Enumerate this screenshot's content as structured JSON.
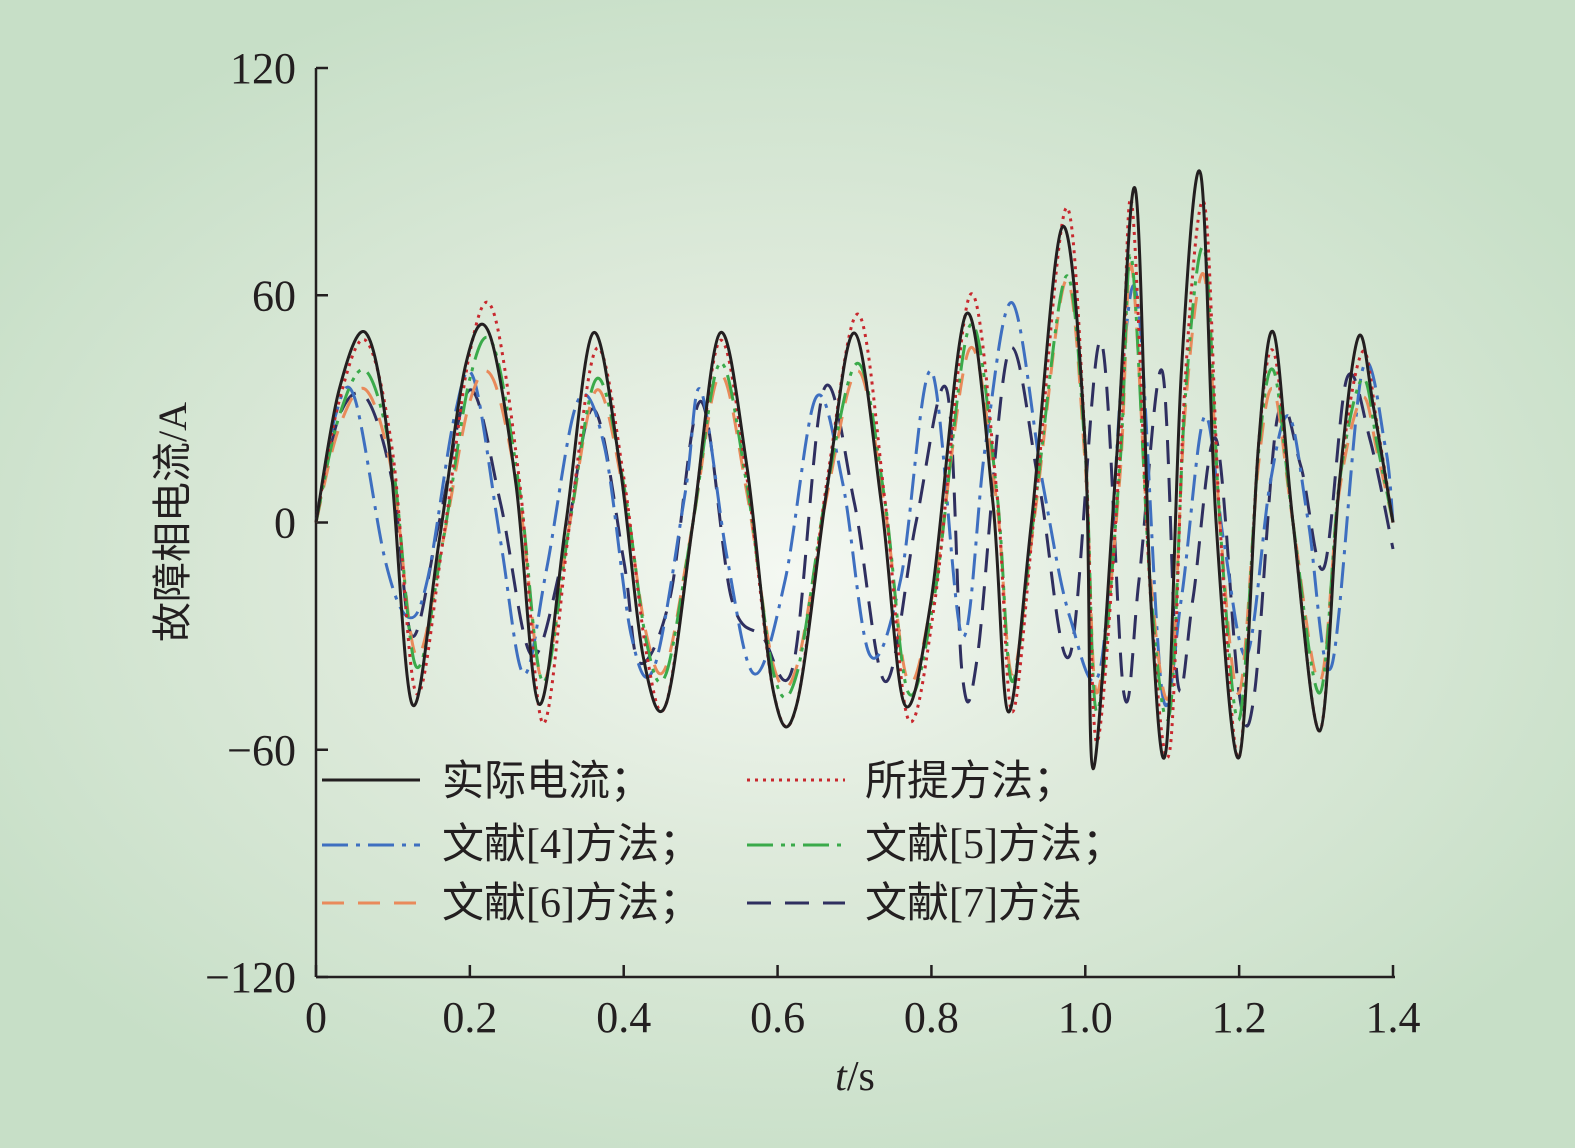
{
  "chart_data": {
    "type": "line",
    "xlabel_italic": "t",
    "xlabel_rest": "/s",
    "ylabel": "故障相电流/A",
    "xlim": [
      0,
      1.4
    ],
    "ylim": [
      -120,
      120
    ],
    "xticks": [
      "0",
      "0.2",
      "0.4",
      "0.6",
      "0.8",
      "1.0",
      "1.2",
      "1.4"
    ],
    "yticks": [
      "120",
      "60",
      "0",
      "−60",
      "−120"
    ],
    "grid": false,
    "legend_position": "lower-left",
    "legend": {
      "actual": "实际电流；",
      "proposed": "所提方法；",
      "ref4": "文献[4]方法；",
      "ref5": "文献[5]方法；",
      "ref6": "文献[6]方法；",
      "ref7": "文献[7]方法"
    },
    "series": [
      {
        "key": "actual",
        "name": "实际电流",
        "color": "#231f20",
        "dash": "none",
        "width": 3,
        "x": [
          0,
          0.03,
          0.065,
          0.095,
          0.125,
          0.16,
          0.195,
          0.225,
          0.26,
          0.29,
          0.325,
          0.36,
          0.395,
          0.425,
          0.455,
          0.49,
          0.525,
          0.56,
          0.595,
          0.625,
          0.665,
          0.7,
          0.735,
          0.765,
          0.8,
          0.845,
          0.88,
          0.9,
          0.93,
          0.97,
          1.0,
          1.01,
          1.04,
          1.065,
          1.085,
          1.105,
          1.125,
          1.15,
          1.17,
          1.2,
          1.225,
          1.245,
          1.27,
          1.305,
          1.33,
          1.355,
          1.375,
          1.4
        ],
        "y": [
          0,
          35,
          50,
          20,
          -48,
          -5,
          42,
          50,
          10,
          -48,
          0,
          50,
          15,
          -35,
          -48,
          0,
          50,
          15,
          -45,
          -48,
          10,
          50,
          5,
          -48,
          -20,
          55,
          5,
          -50,
          0,
          78,
          20,
          -65,
          15,
          88,
          -20,
          -60,
          40,
          92,
          0,
          -62,
          20,
          50,
          0,
          -55,
          10,
          49,
          30,
          0
        ]
      },
      {
        "key": "proposed",
        "name": "所提方法",
        "color": "#c8282e",
        "dash": "3 5",
        "width": 3,
        "x": [
          0,
          0.03,
          0.065,
          0.1,
          0.13,
          0.165,
          0.2,
          0.23,
          0.265,
          0.295,
          0.33,
          0.365,
          0.4,
          0.43,
          0.455,
          0.49,
          0.525,
          0.56,
          0.595,
          0.625,
          0.665,
          0.705,
          0.74,
          0.77,
          0.805,
          0.85,
          0.885,
          0.905,
          0.935,
          0.975,
          1.0,
          1.015,
          1.045,
          1.06,
          1.085,
          1.11,
          1.13,
          1.155,
          1.175,
          1.2,
          1.225,
          1.245,
          1.27,
          1.305,
          1.33,
          1.36,
          1.38,
          1.4
        ],
        "y": [
          0,
          32,
          48,
          18,
          -45,
          -5,
          45,
          56,
          10,
          -53,
          0,
          46,
          12,
          -35,
          -48,
          0,
          48,
          12,
          -45,
          -48,
          12,
          55,
          5,
          -52,
          -20,
          60,
          8,
          -50,
          5,
          83,
          20,
          -58,
          18,
          85,
          -20,
          -60,
          38,
          84,
          0,
          -62,
          20,
          45,
          0,
          -55,
          10,
          45,
          25,
          0
        ]
      },
      {
        "key": "ref4",
        "name": "文献[4]方法",
        "color": "#3e6fc0",
        "dash": "26 8 4 8",
        "width": 3,
        "x": [
          0,
          0.025,
          0.05,
          0.09,
          0.12,
          0.145,
          0.18,
          0.205,
          0.24,
          0.27,
          0.3,
          0.34,
          0.375,
          0.41,
          0.44,
          0.48,
          0.5,
          0.535,
          0.57,
          0.61,
          0.65,
          0.685,
          0.72,
          0.76,
          0.8,
          0.84,
          0.87,
          0.905,
          0.945,
          0.98,
          1.02,
          1.05,
          1.07,
          1.1,
          1.125,
          1.155,
          1.18,
          1.21,
          1.24,
          1.265,
          1.29,
          1.32,
          1.36,
          1.39,
          1.4
        ],
        "y": [
          0,
          28,
          33,
          -10,
          -25,
          -15,
          28,
          38,
          -5,
          -40,
          -12,
          32,
          20,
          -30,
          -38,
          8,
          35,
          -10,
          -40,
          -15,
          33,
          10,
          -35,
          -15,
          40,
          -30,
          20,
          58,
          10,
          -25,
          -38,
          45,
          55,
          -45,
          -20,
          28,
          -5,
          -35,
          10,
          28,
          0,
          -38,
          40,
          20,
          0
        ]
      },
      {
        "key": "ref5",
        "name": "文献[5]方法",
        "color": "#3aaa4a",
        "dash": "26 8 4 6 4 8",
        "width": 3,
        "x": [
          0,
          0.03,
          0.065,
          0.1,
          0.13,
          0.165,
          0.2,
          0.23,
          0.265,
          0.295,
          0.33,
          0.365,
          0.4,
          0.43,
          0.455,
          0.49,
          0.525,
          0.56,
          0.595,
          0.625,
          0.665,
          0.705,
          0.74,
          0.77,
          0.805,
          0.85,
          0.885,
          0.905,
          0.935,
          0.975,
          1.0,
          1.015,
          1.045,
          1.06,
          1.085,
          1.11,
          1.13,
          1.155,
          1.175,
          1.2,
          1.225,
          1.245,
          1.27,
          1.305,
          1.33,
          1.36,
          1.38,
          1.4
        ],
        "y": [
          0,
          28,
          40,
          15,
          -38,
          -5,
          38,
          47,
          8,
          -42,
          0,
          38,
          10,
          -32,
          -40,
          0,
          42,
          10,
          -40,
          -40,
          10,
          42,
          5,
          -45,
          -18,
          52,
          8,
          -42,
          5,
          65,
          18,
          -50,
          15,
          70,
          -18,
          -50,
          33,
          72,
          0,
          -52,
          18,
          40,
          0,
          -45,
          10,
          38,
          20,
          0
        ]
      },
      {
        "key": "ref6",
        "name": "文献[6]方法",
        "color": "#e98a5b",
        "dash": "22 14",
        "width": 3,
        "x": [
          0,
          0.03,
          0.065,
          0.1,
          0.13,
          0.165,
          0.2,
          0.23,
          0.265,
          0.295,
          0.33,
          0.365,
          0.4,
          0.43,
          0.455,
          0.49,
          0.525,
          0.56,
          0.595,
          0.625,
          0.665,
          0.705,
          0.74,
          0.77,
          0.805,
          0.85,
          0.885,
          0.905,
          0.935,
          0.975,
          1.0,
          1.015,
          1.045,
          1.06,
          1.085,
          1.11,
          1.13,
          1.155,
          1.175,
          1.2,
          1.225,
          1.245,
          1.27,
          1.305,
          1.33,
          1.36,
          1.38,
          1.4
        ],
        "y": [
          0,
          25,
          35,
          12,
          -35,
          -5,
          32,
          38,
          5,
          -42,
          0,
          35,
          8,
          -30,
          -38,
          0,
          39,
          8,
          -38,
          -38,
          8,
          40,
          3,
          -42,
          -15,
          46,
          5,
          -40,
          3,
          64,
          15,
          -45,
          12,
          68,
          -15,
          -45,
          30,
          65,
          0,
          -45,
          15,
          35,
          0,
          -42,
          8,
          33,
          18,
          0
        ]
      },
      {
        "key": "ref7",
        "name": "文献[7]方法",
        "color": "#2f2f5f",
        "dash": "24 14",
        "width": 3,
        "x": [
          0,
          0.03,
          0.065,
          0.1,
          0.125,
          0.16,
          0.2,
          0.24,
          0.28,
          0.32,
          0.36,
          0.4,
          0.42,
          0.46,
          0.5,
          0.54,
          0.58,
          0.62,
          0.66,
          0.7,
          0.74,
          0.78,
          0.82,
          0.84,
          0.86,
          0.9,
          0.94,
          0.98,
          1.02,
          1.05,
          1.07,
          1.1,
          1.12,
          1.14,
          1.17,
          1.2,
          1.22,
          1.25,
          1.28,
          1.31,
          1.34,
          1.37,
          1.4
        ],
        "y": [
          0,
          28,
          33,
          10,
          -30,
          0,
          35,
          5,
          -35,
          -10,
          30,
          -10,
          -37,
          -20,
          32,
          -20,
          -30,
          -38,
          35,
          5,
          -42,
          0,
          35,
          -40,
          -35,
          45,
          10,
          -35,
          48,
          -45,
          -15,
          40,
          -42,
          -20,
          22,
          -45,
          -45,
          28,
          15,
          -12,
          38,
          22,
          -7
        ]
      }
    ]
  }
}
